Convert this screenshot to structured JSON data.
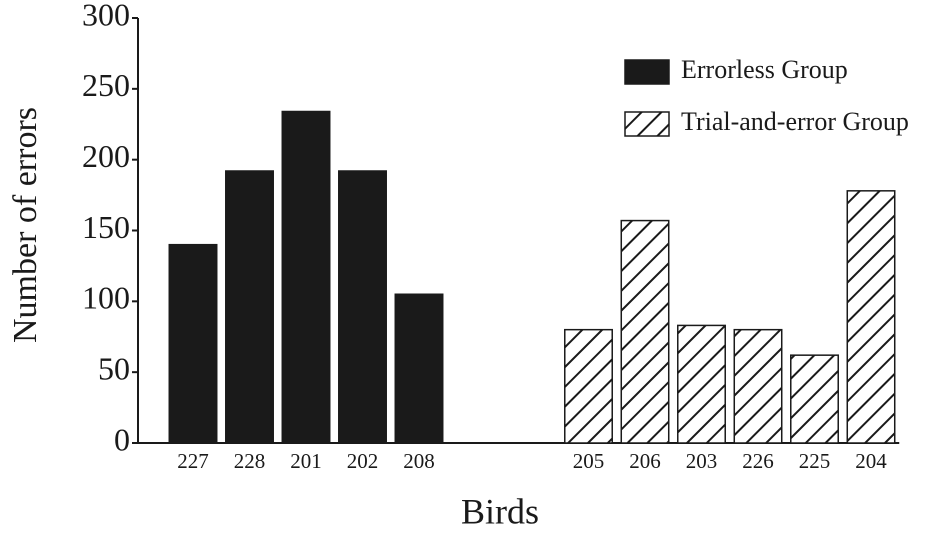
{
  "chart_data": {
    "type": "bar",
    "x_label": "Birds",
    "y_label": "Number of errors",
    "categories": [
      "227",
      "228",
      "201",
      "202",
      "208",
      null,
      null,
      "205",
      "206",
      "203",
      "226",
      "225",
      "204"
    ],
    "series": [
      {
        "name": "Errorless Group",
        "color": "#1a1a1a",
        "hatch": false,
        "values": [
          140,
          192,
          234,
          192,
          105,
          null,
          null,
          null,
          null,
          null,
          null,
          null,
          null
        ]
      },
      {
        "name": "Trial-and-error Group",
        "color": "#ffffff",
        "hatch": true,
        "values": [
          null,
          null,
          null,
          null,
          null,
          null,
          null,
          80,
          157,
          83,
          80,
          62,
          178
        ]
      }
    ],
    "ylim": [
      0,
      300
    ],
    "yticks": [
      0,
      50,
      100,
      150,
      200,
      250,
      300
    ],
    "grid": false,
    "legend": "upper right"
  }
}
